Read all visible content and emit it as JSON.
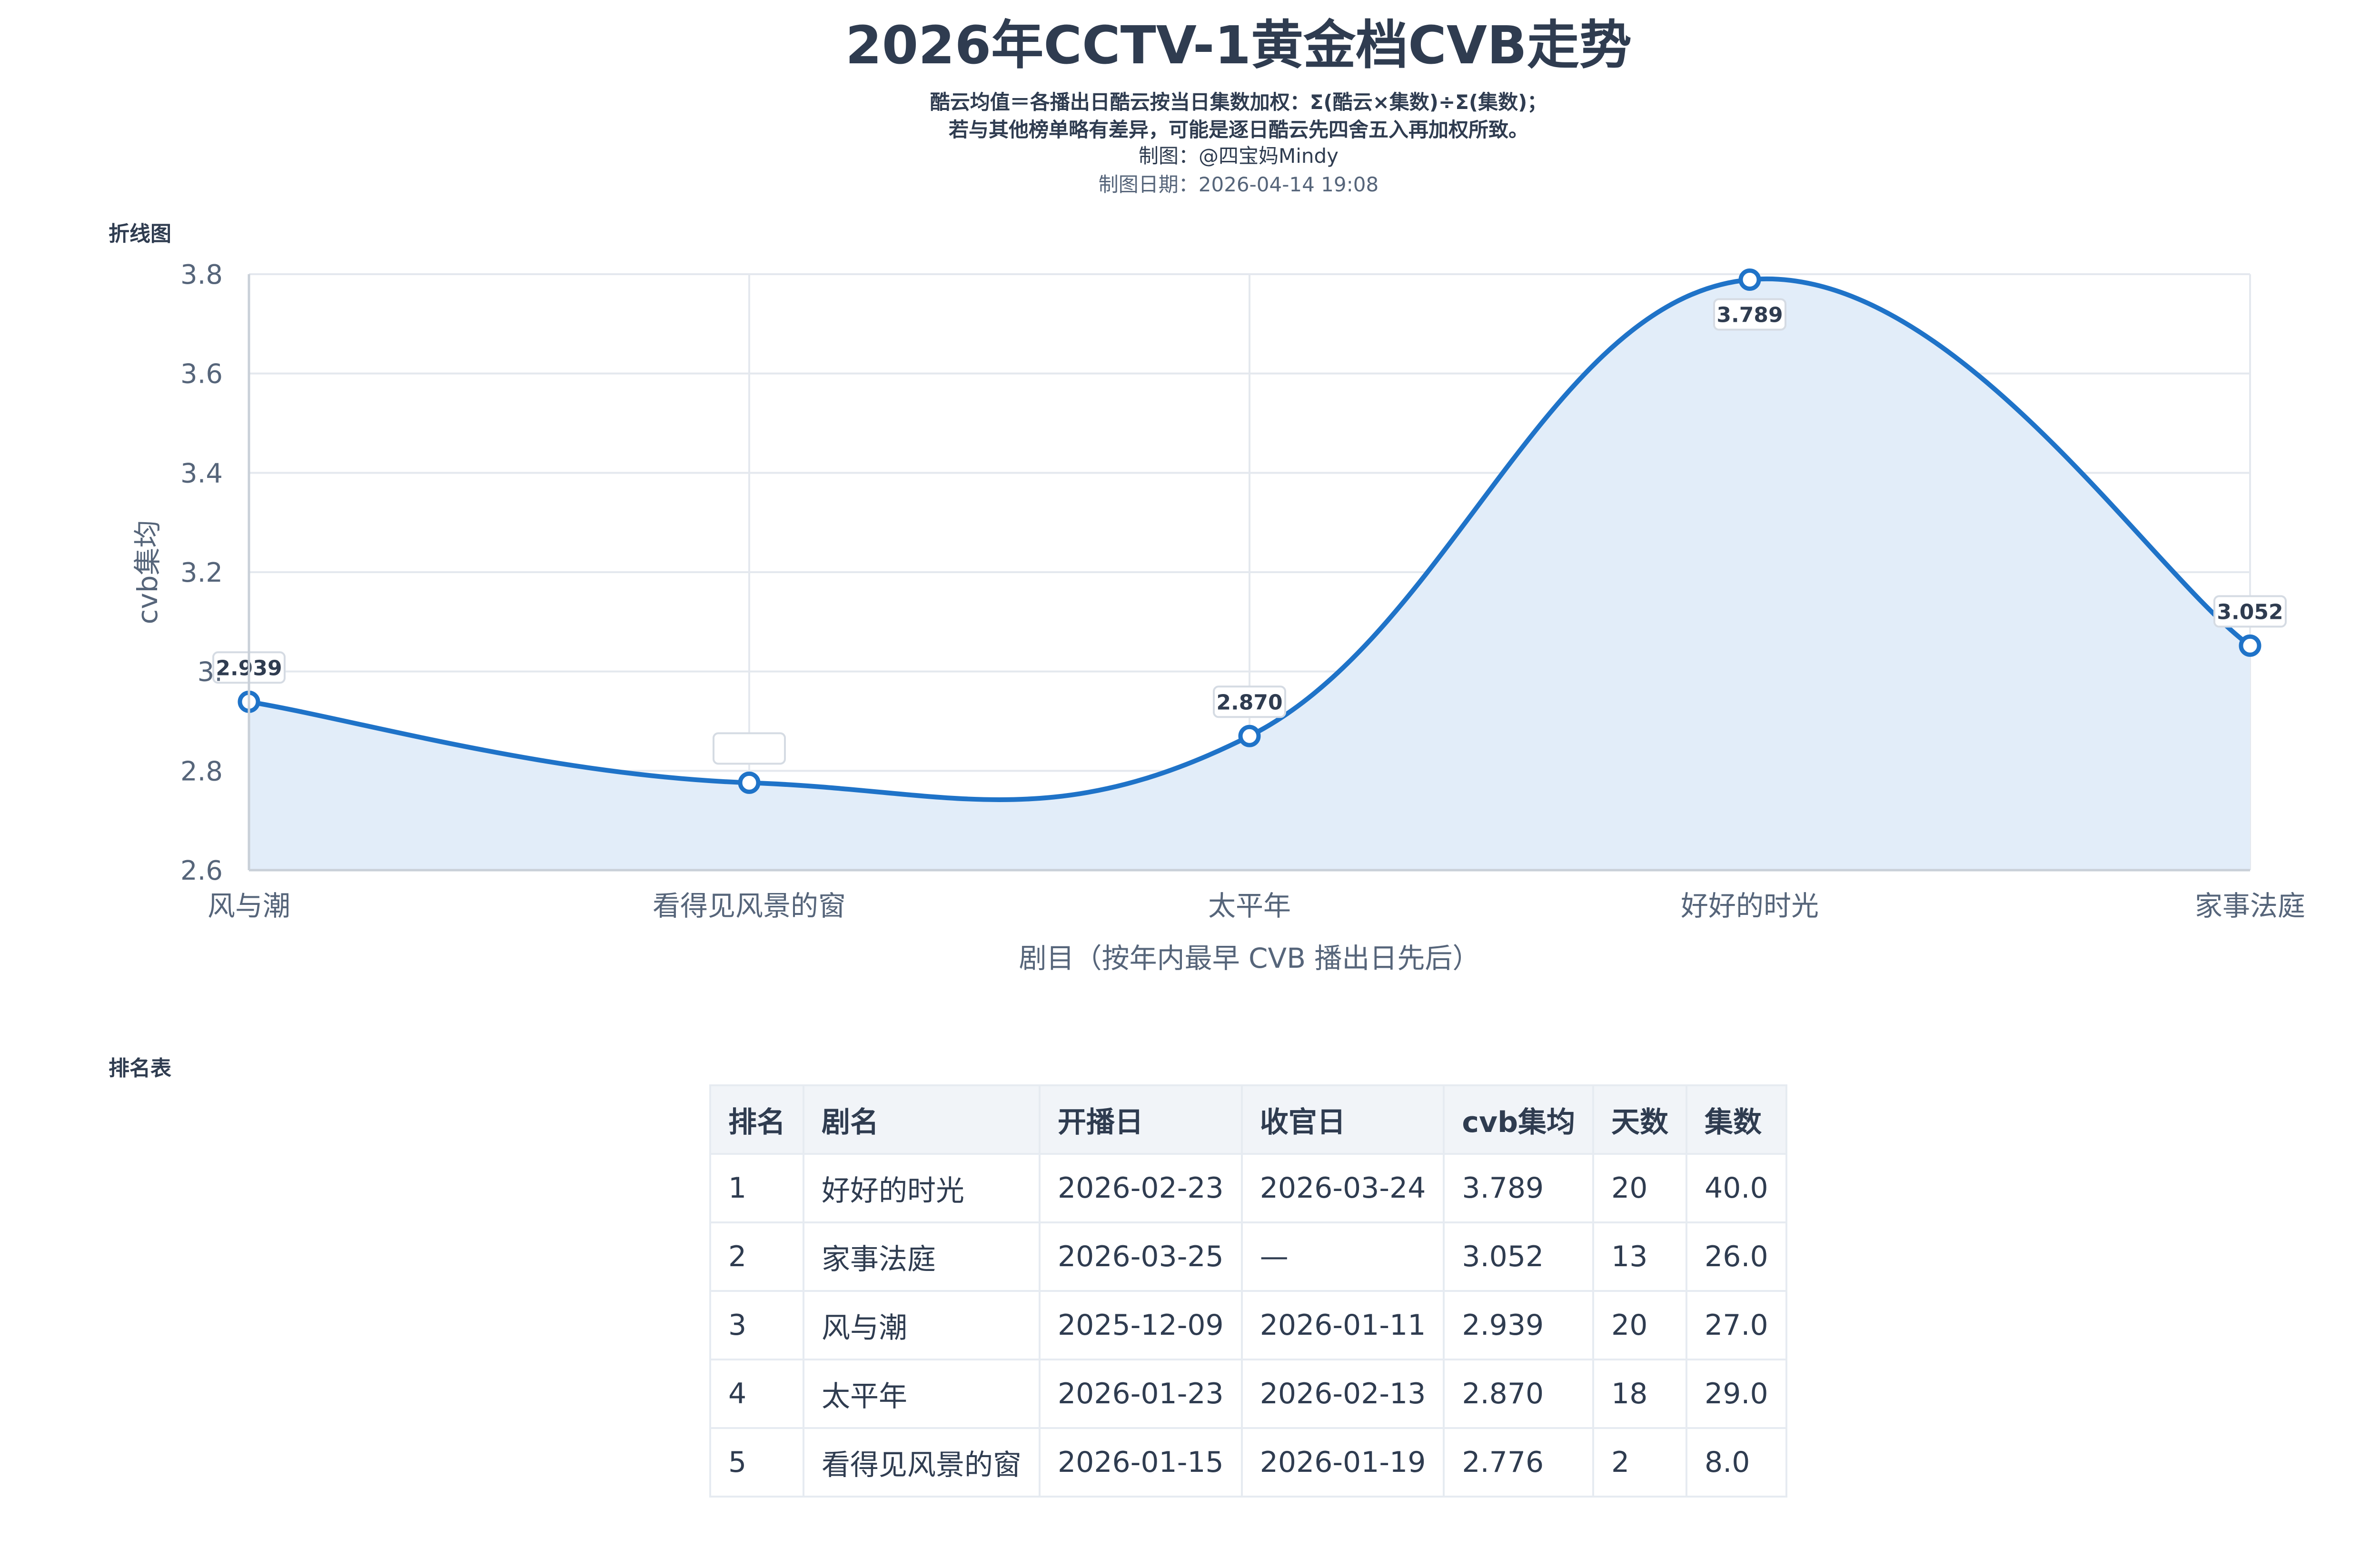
{
  "header": {
    "title": "2026年CCTV-1黄金档CVB走势",
    "subtitle_line1": "酷云均值＝各播出日酷云按当日集数加权：Σ(酷云×集数)÷Σ(集数)；",
    "subtitle_line2": "若与其他榜单略有差异，可能是逐日酷云先四舍五入再加权所致。",
    "author": "制图：@四宝妈Mindy",
    "date": "制图日期：2026-04-14 19:08"
  },
  "sections": {
    "chart_label": "折线图",
    "table_label": "排名表"
  },
  "chart_data": {
    "type": "line",
    "categories": [
      "风与潮",
      "看得见风景的窗",
      "太平年",
      "好好的时光",
      "家事法庭"
    ],
    "values": [
      2.939,
      2.776,
      2.87,
      3.789,
      3.052
    ],
    "data_labels": [
      "2.939",
      "",
      "2.870",
      "3.789",
      "3.052"
    ],
    "xlabel": "剧目（按年内最早 CVB 播出日先后）",
    "ylabel": "cvb集均",
    "ylim": [
      2.6,
      3.8
    ],
    "yticks": [
      "2.6",
      "2.8",
      "3.",
      "3.2",
      "3.4",
      "3.6",
      "3.8"
    ],
    "grid": true,
    "smooth": true,
    "fill": true,
    "line_color": "#1f73c8",
    "fill_color": "#e2edf9"
  },
  "table": {
    "headers": [
      "排名",
      "剧名",
      "开播日",
      "收官日",
      "cvb集均",
      "天数",
      "集数"
    ],
    "rows": [
      [
        "1",
        "好好的时光",
        "2026-02-23",
        "2026-03-24",
        "3.789",
        "20",
        "40.0"
      ],
      [
        "2",
        "家事法庭",
        "2026-03-25",
        "—",
        "3.052",
        "13",
        "26.0"
      ],
      [
        "3",
        "风与潮",
        "2025-12-09",
        "2026-01-11",
        "2.939",
        "20",
        "27.0"
      ],
      [
        "4",
        "太平年",
        "2026-01-23",
        "2026-02-13",
        "2.870",
        "18",
        "29.0"
      ],
      [
        "5",
        "看得见风景的窗",
        "2026-01-15",
        "2026-01-19",
        "2.776",
        "2",
        "8.0"
      ]
    ]
  }
}
